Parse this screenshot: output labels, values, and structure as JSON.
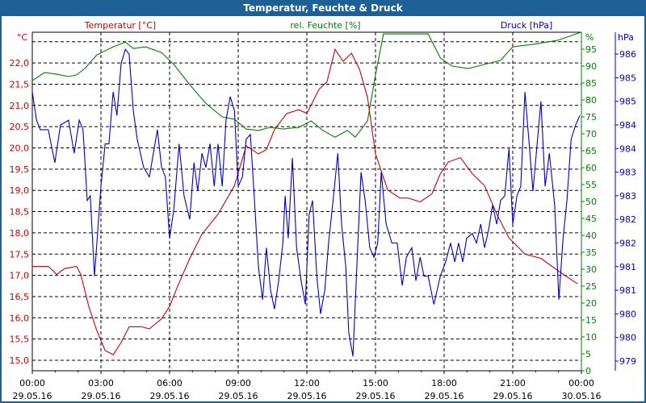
{
  "window": {
    "title": "Temperatur, Feuchte & Druck",
    "background": "#ffffff",
    "titlebar_color": "#1e5f96"
  },
  "chart_data": {
    "type": "line",
    "title": "Temperatur, Feuchte & Druck",
    "grid": true,
    "x_axis": {
      "range": [
        "29.05.16 00:00",
        "30.05.16 00:00"
      ],
      "ticks": [
        {
          "time": "00:00",
          "date": "29.05.16"
        },
        {
          "time": "03:00",
          "date": "29.05.16"
        },
        {
          "time": "06:00",
          "date": "29.05.16"
        },
        {
          "time": "09:00",
          "date": "29.05.16"
        },
        {
          "time": "12:00",
          "date": "29.05.16"
        },
        {
          "time": "15:00",
          "date": "29.05.16"
        },
        {
          "time": "18:00",
          "date": "29.05.16"
        },
        {
          "time": "21:00",
          "date": "29.05.16"
        },
        {
          "time": "00:00",
          "date": "30.05.16"
        }
      ]
    },
    "axes": {
      "temperature": {
        "label": "Temperatur [°C]",
        "unit": "°C",
        "color": "#cc0000",
        "range": [
          14.75,
          22.7
        ],
        "ticks": [
          "15,0",
          "15,5",
          "16,0",
          "16,5",
          "17,0",
          "17,5",
          "18,0",
          "18,5",
          "19,0",
          "19,5",
          "20,0",
          "20,5",
          "21,0",
          "21,5",
          "22,0"
        ]
      },
      "humidity": {
        "label": "rel. Feuchte [%]",
        "unit": "%",
        "color": "#008000",
        "range": [
          0,
          100
        ],
        "ticks": [
          "0",
          "5",
          "10",
          "15",
          "20",
          "25",
          "30",
          "35",
          "40",
          "45",
          "50",
          "55",
          "60",
          "65",
          "70",
          "75",
          "80",
          "85",
          "90",
          "95"
        ]
      },
      "pressure": {
        "label": "Druck [hPa]",
        "unit": "hPa",
        "color": "#0000cc",
        "range": [
          978.8,
          986.0
        ],
        "ticks": [
          "979",
          "980",
          "980",
          "981",
          "981",
          "982",
          "982",
          "983",
          "983",
          "984",
          "984",
          "985",
          "985",
          "986"
        ]
      }
    },
    "series": [
      {
        "name": "Temperatur [°C]",
        "axis": "temperature",
        "color": "#cc0000",
        "t": [
          "00:00",
          "00:42",
          "01:04",
          "01:25",
          "01:56",
          "02:07",
          "02:28",
          "02:49",
          "03:11",
          "03:32",
          "03:53",
          "04:14",
          "04:46",
          "05:07",
          "05:39",
          "06:00",
          "06:21",
          "06:53",
          "07:25",
          "08:07",
          "08:50",
          "09:21",
          "09:53",
          "10:14",
          "10:35",
          "11:07",
          "11:39",
          "12:00",
          "12:32",
          "12:53",
          "13:14",
          "13:35",
          "13:57",
          "14:18",
          "14:39",
          "15:00",
          "15:32",
          "16:04",
          "16:25",
          "16:57",
          "17:28",
          "17:50",
          "18:11",
          "18:43",
          "19:14",
          "19:46",
          "20:18",
          "20:50",
          "21:32",
          "22:14",
          "22:57",
          "23:28",
          "23:50"
        ],
        "values": [
          17.21,
          17.21,
          17.02,
          17.16,
          17.21,
          17.02,
          16.27,
          15.7,
          15.23,
          15.13,
          15.42,
          15.79,
          15.79,
          15.74,
          15.98,
          16.27,
          16.74,
          17.4,
          17.97,
          18.44,
          19.11,
          20.05,
          19.86,
          19.96,
          20.43,
          20.81,
          20.9,
          20.81,
          21.38,
          21.56,
          22.32,
          22.04,
          22.23,
          21.85,
          21.19,
          19.86,
          19.01,
          18.82,
          18.82,
          18.73,
          18.92,
          19.39,
          19.67,
          19.77,
          19.39,
          19.11,
          18.44,
          17.88,
          17.5,
          17.4,
          17.12,
          16.93,
          16.8
        ]
      },
      {
        "name": "rel. Feuchte [%]",
        "axis": "humidity",
        "color": "#008000",
        "t": [
          "00:00",
          "00:32",
          "01:04",
          "01:35",
          "01:56",
          "02:18",
          "02:49",
          "03:32",
          "04:04",
          "04:25",
          "04:57",
          "05:39",
          "06:11",
          "06:53",
          "07:35",
          "08:18",
          "08:50",
          "09:21",
          "09:53",
          "10:25",
          "10:57",
          "11:39",
          "12:11",
          "12:42",
          "13:14",
          "13:46",
          "14:07",
          "14:39",
          "15:00",
          "15:21",
          "17:18",
          "17:50",
          "18:21",
          "19:04",
          "19:46",
          "20:28",
          "21:00",
          "21:53",
          "22:57",
          "23:59"
        ],
        "values": [
          85.7,
          88.1,
          87.6,
          86.9,
          87.4,
          89.3,
          93.3,
          95.7,
          97.1,
          95.2,
          95.7,
          94.0,
          90.5,
          84.5,
          79.0,
          75.0,
          74.3,
          71.4,
          71.0,
          71.9,
          71.4,
          71.9,
          73.8,
          71.0,
          69.0,
          71.0,
          69.0,
          73.8,
          87.4,
          99.5,
          99.5,
          92.4,
          90.0,
          89.3,
          90.5,
          91.7,
          95.7,
          96.4,
          97.6,
          100
        ]
      },
      {
        "name": "Druck [hPa]",
        "axis": "pressure",
        "color": "#0000cc",
        "t": [
          "00:00",
          "00:11",
          "00:21",
          "00:42",
          "00:59",
          "01:14",
          "01:35",
          "01:50",
          "02:03",
          "02:13",
          "02:24",
          "02:32",
          "02:43",
          "03:00",
          "03:11",
          "03:21",
          "03:32",
          "03:42",
          "03:53",
          "04:04",
          "04:14",
          "04:25",
          "04:35",
          "04:52",
          "05:07",
          "05:28",
          "05:39",
          "05:49",
          "06:00",
          "06:11",
          "06:25",
          "06:38",
          "06:53",
          "07:04",
          "07:14",
          "07:25",
          "07:35",
          "07:46",
          "07:57",
          "08:07",
          "08:18",
          "08:28",
          "08:39",
          "08:50",
          "09:00",
          "09:11",
          "09:21",
          "09:32",
          "09:42",
          "09:53",
          "10:04",
          "10:14",
          "10:25",
          "10:35",
          "10:46",
          "10:57",
          "11:03",
          "11:11",
          "11:22",
          "11:33",
          "11:45",
          "11:56",
          "12:06",
          "12:15",
          "12:26",
          "12:36",
          "12:47",
          "12:57",
          "13:10",
          "13:21",
          "13:31",
          "13:42",
          "13:50",
          "14:01",
          "14:11",
          "14:22",
          "14:33",
          "14:45",
          "14:56",
          "15:06",
          "15:15",
          "15:28",
          "15:43",
          "15:57",
          "16:10",
          "16:21",
          "16:35",
          "16:46",
          "16:57",
          "17:07",
          "17:18",
          "17:33",
          "17:50",
          "18:04",
          "18:17",
          "18:28",
          "18:38",
          "18:49",
          "18:59",
          "19:14",
          "19:25",
          "19:36",
          "19:46",
          "19:57",
          "20:07",
          "20:18",
          "20:28",
          "20:39",
          "20:50",
          "21:00",
          "21:11",
          "21:21",
          "21:32",
          "21:43",
          "21:53",
          "22:04",
          "22:14",
          "22:25",
          "22:36",
          "22:50",
          "23:01",
          "23:12",
          "23:22",
          "23:33",
          "23:45",
          "23:56"
        ],
        "values": [
          984.7,
          984.1,
          983.9,
          983.9,
          983.2,
          984.0,
          984.1,
          983.4,
          984.1,
          983.9,
          982.4,
          982.5,
          980.8,
          982.7,
          983.6,
          983.6,
          984.7,
          984.2,
          985.3,
          985.6,
          985.5,
          984.3,
          983.7,
          983.1,
          982.9,
          983.9,
          983.1,
          982.9,
          981.6,
          982.2,
          983.6,
          982.5,
          982.0,
          983.2,
          982.6,
          983.4,
          983.1,
          983.6,
          982.7,
          983.6,
          982.7,
          984.1,
          984.6,
          984.3,
          982.7,
          982.9,
          983.7,
          983.8,
          982.5,
          981.0,
          980.3,
          981.4,
          980.5,
          980.1,
          980.7,
          981.5,
          982.5,
          981.6,
          983.3,
          981.4,
          980.7,
          980.2,
          982.1,
          982.4,
          980.8,
          980.0,
          980.5,
          981.5,
          982.5,
          983.4,
          981.9,
          981.0,
          979.6,
          979.1,
          981.0,
          983.0,
          982.4,
          981.4,
          981.2,
          981.5,
          983.0,
          981.9,
          981.5,
          981.5,
          980.6,
          981.2,
          981.4,
          980.7,
          981.2,
          980.8,
          980.8,
          980.2,
          980.8,
          981.1,
          981.5,
          981.1,
          981.5,
          981.1,
          981.6,
          981.7,
          981.5,
          981.9,
          981.4,
          981.8,
          982.3,
          981.9,
          982.4,
          982.5,
          983.5,
          981.9,
          982.5,
          982.7,
          984.7,
          983.6,
          982.6,
          983.6,
          984.5,
          982.7,
          983.4,
          982.3,
          980.3,
          981.6,
          982.4,
          983.7,
          984.0,
          984.2
        ]
      }
    ]
  }
}
